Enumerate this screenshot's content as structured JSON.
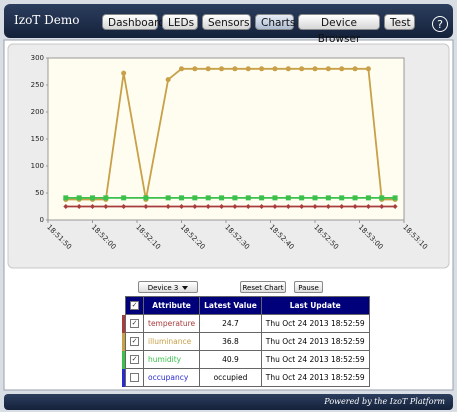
{
  "header": {
    "title": "IzoT Demo",
    "tabs": [
      "Dashboard",
      "LEDs",
      "Sensors",
      "Charts",
      "Device Browser",
      "Test"
    ],
    "active_tab": 3,
    "help": "?"
  },
  "chart_data": {
    "type": "line",
    "x": [
      "18:51:54",
      "18:51:57",
      "18:52:00",
      "18:52:03",
      "18:52:07",
      "18:52:12",
      "18:52:17",
      "18:52:20",
      "18:52:23",
      "18:52:26",
      "18:52:29",
      "18:52:32",
      "18:52:35",
      "18:52:38",
      "18:52:41",
      "18:52:44",
      "18:52:47",
      "18:52:50",
      "18:52:53",
      "18:52:56",
      "18:52:59",
      "18:53:02",
      "18:53:05",
      "18:53:08"
    ],
    "series": [
      {
        "color": "#a83c3c",
        "marker": "diamond",
        "values": [
          25,
          25,
          25,
          25,
          25,
          25,
          25,
          25,
          25,
          25,
          25,
          25,
          25,
          25,
          25,
          25,
          25,
          25,
          25,
          25,
          25,
          25,
          25,
          25
        ]
      },
      {
        "color": "#c8a048",
        "marker": "circle",
        "values": [
          38,
          38,
          38,
          38,
          272,
          38,
          260,
          280,
          280,
          280,
          280,
          280,
          280,
          280,
          280,
          280,
          280,
          280,
          280,
          280,
          280,
          280,
          38,
          38
        ]
      },
      {
        "color": "#3cc04c",
        "marker": "square",
        "values": [
          41,
          41,
          41,
          41,
          41,
          41,
          41,
          41,
          41,
          41,
          41,
          41,
          41,
          41,
          41,
          41,
          41,
          41,
          41,
          41,
          41,
          41,
          41,
          41
        ]
      }
    ],
    "xlim": [
      "18:51:50",
      "18:53:10"
    ],
    "xticks": [
      "18:51:50",
      "18:52:00",
      "18:52:10",
      "18:52:20",
      "18:52:30",
      "18:52:40",
      "18:52:50",
      "18:53:00",
      "18:53:10"
    ],
    "ylim": [
      0,
      300
    ],
    "yticks": [
      0,
      50,
      100,
      150,
      200,
      250,
      300
    ],
    "grid": false
  },
  "controls": {
    "device": "Device 3",
    "reset": "Reset Chart",
    "pause": "Pause"
  },
  "table": {
    "header_checked": true,
    "columns": [
      "Attribute",
      "Latest Value",
      "Last Update"
    ],
    "rows": [
      {
        "color": "#a83c3c",
        "checked": true,
        "attribute": "temperature",
        "value": 24.7,
        "updated": "Thu Oct 24 2013 18:52:59"
      },
      {
        "color": "#c8a048",
        "checked": true,
        "attribute": "illuminance",
        "value": 36.8,
        "updated": "Thu Oct 24 2013 18:52:59"
      },
      {
        "color": "#3cc04c",
        "checked": true,
        "attribute": "humidity",
        "value": 40.9,
        "updated": "Thu Oct 24 2013 18:52:59"
      },
      {
        "color": "#2a2ad0",
        "checked": false,
        "attribute": "occupancy",
        "value": "occupied",
        "updated": "Thu Oct 24 2013 18:52:59"
      }
    ]
  },
  "footer": "Powered by the IzoT Platform"
}
